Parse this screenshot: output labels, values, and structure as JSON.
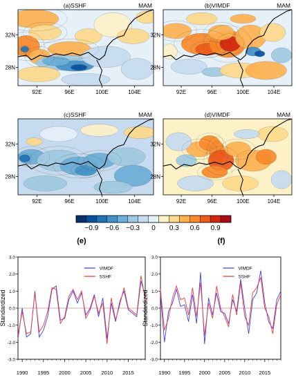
{
  "maps": [
    {
      "id": "a",
      "title": "(a)SSHF",
      "season": "MAM",
      "kind": "sshf_cor",
      "lon_ticks": [
        "92E",
        "96E",
        "100E",
        "104E"
      ],
      "lat_ticks": [
        "32N",
        "28N"
      ]
    },
    {
      "id": "b",
      "title": "(b)VIMDF",
      "season": "MAM",
      "kind": "vimdf_cor",
      "lon_ticks": [
        "92E",
        "96E",
        "100E",
        "104E"
      ],
      "lat_ticks": [
        "32N",
        "28N"
      ]
    },
    {
      "id": "c",
      "title": "(c)SSHF",
      "season": "MAM",
      "kind": "sshf_reg",
      "lon_ticks": [
        "92E",
        "96E",
        "100E",
        "104E"
      ],
      "lat_ticks": [
        "32N",
        "28N"
      ]
    },
    {
      "id": "d",
      "title": "(d)VIMDF",
      "season": "MAM",
      "kind": "vimdf_reg",
      "lon_ticks": [
        "92E",
        "96E",
        "100E",
        "104E"
      ],
      "lat_ticks": [
        "32N",
        "28N"
      ]
    }
  ],
  "colorbar": {
    "labels": [
      "−0.9",
      "−0.6",
      "−0.3",
      "0",
      "0.3",
      "0.6",
      "0.9"
    ],
    "colors": [
      "#08306b",
      "#08519c",
      "#2171b5",
      "#4292c6",
      "#6baed6",
      "#9ecae1",
      "#c6dbef",
      "#e6f0f8",
      "#fdf1c8",
      "#fdd98a",
      "#fdb150",
      "#f98a2a",
      "#ec5a1a",
      "#d2260e",
      "#a50f15"
    ]
  },
  "chart_data": [
    {
      "type": "line",
      "label": "(e)",
      "ylabel": "Standardized",
      "ylim": [
        -3.0,
        3.0
      ],
      "yticks": [
        "3.0",
        "2.0",
        "1.0",
        "0.0",
        "-1.0",
        "-2.0",
        "-3.0"
      ],
      "xlim": [
        1989,
        2019
      ],
      "xticks": [
        "1990",
        "1995",
        "2000",
        "2005",
        "2010",
        "2015"
      ],
      "x": [
        1989,
        1990,
        1991,
        1992,
        1993,
        1994,
        1995,
        1996,
        1997,
        1998,
        1999,
        2000,
        2001,
        2002,
        2003,
        2004,
        2005,
        2006,
        2007,
        2008,
        2009,
        2010,
        2011,
        2012,
        2013,
        2014,
        2015,
        2016,
        2017,
        2018,
        2019
      ],
      "series": [
        {
          "name": "VIMDF",
          "color": "#3d3df0",
          "values": [
            -1.8,
            0.0,
            -1.7,
            -1.5,
            1.0,
            -1.7,
            -1.3,
            -0.5,
            1.1,
            1.3,
            -0.7,
            -0.6,
            0.5,
            1.0,
            0.3,
            0.9,
            -0.4,
            0.0,
            0.8,
            -0.5,
            0.6,
            -1.8,
            0.3,
            -0.8,
            0.4,
            1.0,
            -0.1,
            -0.3,
            -0.5,
            1.6,
            0.7
          ]
        },
        {
          "name": "SSHF",
          "color": "#f03a3a",
          "values": [
            -1.6,
            -0.2,
            -1.5,
            -1.4,
            0.9,
            -1.4,
            -1.0,
            -0.2,
            1.2,
            1.1,
            -0.9,
            -0.5,
            0.7,
            1.1,
            0.5,
            1.0,
            -0.6,
            -0.1,
            0.7,
            -0.3,
            0.3,
            -2.1,
            0.6,
            -0.7,
            0.2,
            1.2,
            0.0,
            -0.2,
            -0.4,
            1.9,
            0.5
          ]
        }
      ],
      "legend": "top-right"
    },
    {
      "type": "line",
      "label": "(f)",
      "ylabel": "Standardized",
      "ylim": [
        -3.0,
        3.0
      ],
      "yticks": [
        "3.0",
        "2.0",
        "1.0",
        "0.0",
        "-1.0",
        "-2.0",
        "-3.0"
      ],
      "xlim": [
        1989,
        2019
      ],
      "xticks": [
        "1990",
        "1995",
        "2000",
        "2005",
        "2010",
        "2015"
      ],
      "x": [
        1989,
        1990,
        1991,
        1992,
        1993,
        1994,
        1995,
        1996,
        1997,
        1998,
        1999,
        2000,
        2001,
        2002,
        2003,
        2004,
        2005,
        2006,
        2007,
        2008,
        2009,
        2010,
        2011,
        2012,
        2013,
        2014,
        2015,
        2016,
        2017,
        2018,
        2019
      ],
      "series": [
        {
          "name": "VIMDF",
          "color": "#3d3df0",
          "values": [
            0.8,
            -2.0,
            -0.2,
            0.3,
            1.1,
            0.1,
            0.2,
            -0.8,
            0.8,
            -0.9,
            2.1,
            -2.1,
            0.6,
            -0.4,
            0.9,
            -0.2,
            -0.3,
            -0.9,
            0.5,
            -0.2,
            1.7,
            0.0,
            -1.5,
            0.5,
            0.9,
            2.2,
            0.3,
            -0.8,
            -1.2,
            0.5,
            1.0
          ]
        },
        {
          "name": "SSHF",
          "color": "#f03a3a",
          "values": [
            1.1,
            -1.3,
            -0.6,
            0.6,
            1.3,
            0.5,
            0.6,
            -0.4,
            1.2,
            -0.5,
            1.5,
            -1.6,
            0.3,
            -0.6,
            1.3,
            0.0,
            -0.5,
            -1.1,
            0.8,
            -0.4,
            1.5,
            -0.5,
            -1.0,
            0.9,
            1.2,
            1.8,
            0.0,
            -0.5,
            -1.5,
            0.2,
            0.8
          ]
        }
      ],
      "legend": "top-right"
    }
  ]
}
